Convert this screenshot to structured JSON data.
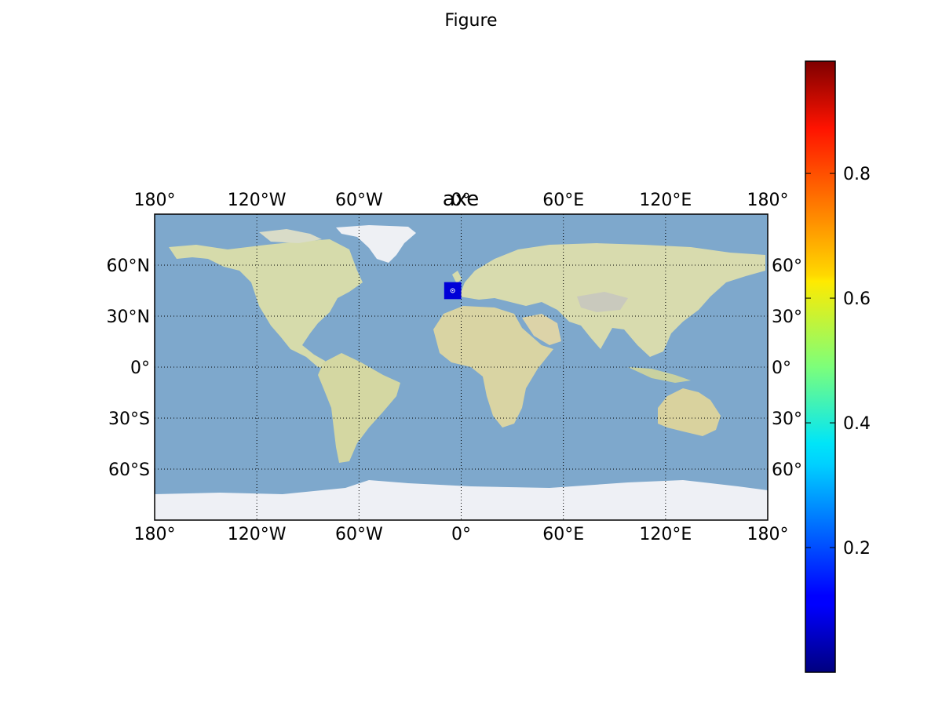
{
  "figure": {
    "title": "Figure"
  },
  "axes": {
    "title": "axe",
    "overlap_glyph": "0°",
    "lon_labels_top": [
      "180°",
      "120°W",
      "60°W",
      "60°E",
      "120°E",
      "180°"
    ],
    "lon_labels_bottom": [
      "180°",
      "120°W",
      "60°W",
      "0°",
      "60°E",
      "120°E",
      "180°"
    ],
    "lat_labels_left": [
      "60°N",
      "30°N",
      "0°",
      "30°S",
      "60°S"
    ],
    "lat_labels_right": [
      "60°",
      "30°",
      "0°",
      "30°",
      "60°"
    ],
    "lon_range": [
      -180,
      180
    ],
    "lat_range": [
      -90,
      90
    ],
    "grid": "dotted",
    "meridians": [
      -120,
      -60,
      0,
      60,
      120
    ],
    "parallels": [
      60,
      30,
      0,
      -30,
      -60
    ],
    "basemap": "shaded-relief"
  },
  "colorbar": {
    "colormap": "jet",
    "range": [
      0.0,
      0.98
    ],
    "ticks": [
      {
        "value": 0.2,
        "label": "0.2"
      },
      {
        "value": 0.4,
        "label": "0.4"
      },
      {
        "value": 0.6,
        "label": "0.6"
      },
      {
        "value": 0.8,
        "label": "0.8"
      }
    ]
  },
  "chart_data": {
    "type": "heatmap",
    "cells": [
      {
        "lon_min": -10,
        "lon_max": 0,
        "lat_min": 40,
        "lat_max": 50,
        "value": 0.05,
        "color": "#0000d8"
      }
    ],
    "markers": [
      {
        "lon": -5,
        "lat": 45,
        "shape": "circle",
        "color": "#ffffff"
      }
    ]
  },
  "colors": {
    "ocean": "#7fa9cf",
    "land": "#d8dcae",
    "ice": "#eef1f6",
    "frame": "#000000"
  }
}
